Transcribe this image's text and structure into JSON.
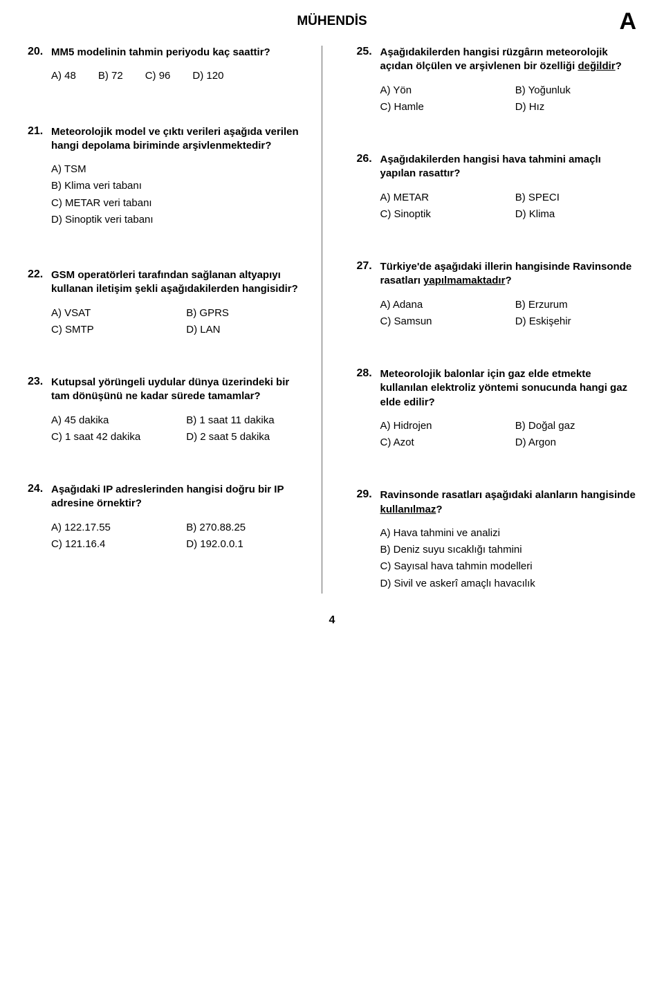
{
  "header": {
    "title": "MÜHENDİS",
    "letter": "A"
  },
  "page_number": "4",
  "questions": {
    "q20": {
      "num": "20.",
      "text": "MM5 modelinin tahmin periyodu kaç saattir?",
      "a": "A) 48",
      "b": "B) 72",
      "c": "C) 96",
      "d": "D) 120"
    },
    "q21": {
      "num": "21.",
      "text": "Meteorolojik model ve çıktı verileri aşağıda verilen hangi depolama biriminde arşivlenmektedir?",
      "a": "A) TSM",
      "b": "B) Klima veri tabanı",
      "c": "C) METAR veri tabanı",
      "d": "D) Sinoptik veri tabanı"
    },
    "q22": {
      "num": "22.",
      "text": "GSM operatörleri tarafından sağlanan altyapıyı kullanan iletişim şekli aşağıdakilerden hangisidir?",
      "a": "A) VSAT",
      "b": "B) GPRS",
      "c": "C) SMTP",
      "d": "D) LAN"
    },
    "q23": {
      "num": "23.",
      "text": "Kutupsal yörüngeli uydular dünya üzerindeki bir tam dönüşünü ne kadar sürede tamamlar?",
      "a": "A) 45 dakika",
      "b": "B) 1 saat 11 dakika",
      "c": "C) 1 saat 42 dakika",
      "d": "D) 2 saat 5 dakika"
    },
    "q24": {
      "num": "24.",
      "text": "Aşağıdaki IP adreslerinden hangisi doğru bir IP adresine örnektir?",
      "a": "A) 122.17.55",
      "b": "B) 270.88.25",
      "c": "C) 121.16.4",
      "d": "D) 192.0.0.1"
    },
    "q25": {
      "num": "25.",
      "text_pre": "Aşağıdakilerden hangisi rüzgârın meteorolojik açıdan ölçülen ve arşivlenen bir özelliği ",
      "text_ul": "değildir",
      "text_post": "?",
      "a": "A) Yön",
      "b": "B) Yoğunluk",
      "c": "C) Hamle",
      "d": "D) Hız"
    },
    "q26": {
      "num": "26.",
      "text": "Aşağıdakilerden hangisi hava tahmini amaçlı yapılan rasattır?",
      "a": "A) METAR",
      "b": "B) SPECI",
      "c": "C) Sinoptik",
      "d": "D) Klima"
    },
    "q27": {
      "num": "27.",
      "text_pre": "Türkiye'de aşağıdaki illerin hangisinde Ravinsonde rasatları ",
      "text_ul": "yapılmamaktadır",
      "text_post": "?",
      "a": "A) Adana",
      "b": "B) Erzurum",
      "c": "C) Samsun",
      "d": "D) Eskişehir"
    },
    "q28": {
      "num": "28.",
      "text": "Meteorolojik balonlar için gaz elde etmekte kullanılan elektroliz yöntemi sonucunda hangi gaz elde edilir?",
      "a": "A) Hidrojen",
      "b": "B) Doğal gaz",
      "c": "C) Azot",
      "d": "D) Argon"
    },
    "q29": {
      "num": "29.",
      "text_pre": "Ravinsonde rasatları aşağıdaki alanların hangisinde ",
      "text_ul": "kullanılmaz",
      "text_post": "?",
      "a": "A) Hava tahmini ve analizi",
      "b": "B) Deniz suyu sıcaklığı tahmini",
      "c": "C) Sayısal hava tahmin modelleri",
      "d": "D) Sivil ve askerî amaçlı havacılık"
    }
  }
}
